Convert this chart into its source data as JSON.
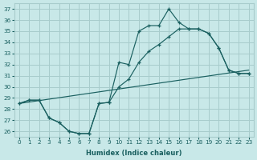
{
  "xlabel": "Humidex (Indice chaleur)",
  "xlim": [
    -0.5,
    23.5
  ],
  "ylim": [
    25.5,
    37.5
  ],
  "xticks": [
    0,
    1,
    2,
    3,
    4,
    5,
    6,
    7,
    8,
    9,
    10,
    11,
    12,
    13,
    14,
    15,
    16,
    17,
    18,
    19,
    20,
    21,
    22,
    23
  ],
  "yticks": [
    26,
    27,
    28,
    29,
    30,
    31,
    32,
    33,
    34,
    35,
    36,
    37
  ],
  "bg_color": "#c8e8e8",
  "grid_color": "#a8cccc",
  "line_color": "#1a6060",
  "line1_x": [
    0,
    23
  ],
  "line1_y": [
    28.5,
    31.5
  ],
  "line2_x": [
    0,
    1,
    2,
    3,
    4,
    5,
    6,
    7,
    8,
    9,
    10,
    11,
    12,
    13,
    14,
    15,
    16,
    17,
    18,
    19,
    20,
    21,
    22,
    23
  ],
  "line2_y": [
    28.5,
    28.8,
    28.8,
    27.2,
    26.8,
    26.0,
    25.8,
    25.8,
    28.5,
    28.6,
    32.2,
    32.0,
    35.0,
    35.5,
    35.5,
    37.0,
    35.8,
    35.2,
    35.2,
    34.8,
    33.5,
    31.5,
    31.2,
    31.2
  ],
  "line3_x": [
    0,
    1,
    2,
    3,
    4,
    5,
    6,
    7,
    8,
    9,
    10,
    11,
    12,
    13,
    14,
    15,
    16,
    17,
    18,
    19,
    20,
    21,
    22,
    23
  ],
  "line3_y": [
    28.5,
    28.8,
    28.8,
    27.2,
    26.8,
    26.0,
    25.8,
    25.8,
    28.5,
    28.6,
    30.0,
    30.7,
    32.2,
    33.2,
    33.8,
    34.5,
    35.2,
    35.2,
    35.2,
    34.8,
    33.5,
    31.5,
    31.2,
    31.2
  ]
}
